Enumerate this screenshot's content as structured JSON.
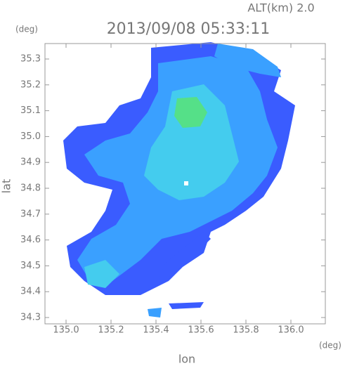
{
  "altitude": "ALT(km) 2.0",
  "title": "2013/09/08 05:33:11",
  "y_unit": "(deg)",
  "x_unit": "(deg)",
  "y_label": "lat",
  "x_label": "lon",
  "y_ticks": [
    "35.3",
    "35.2",
    "35.1",
    "35.0",
    "34.9",
    "34.8",
    "34.7",
    "34.6",
    "34.5",
    "34.4",
    "34.3"
  ],
  "x_ticks": [
    "135.0",
    "135.2",
    "135.4",
    "135.6",
    "135.8",
    "136.0"
  ]
}
